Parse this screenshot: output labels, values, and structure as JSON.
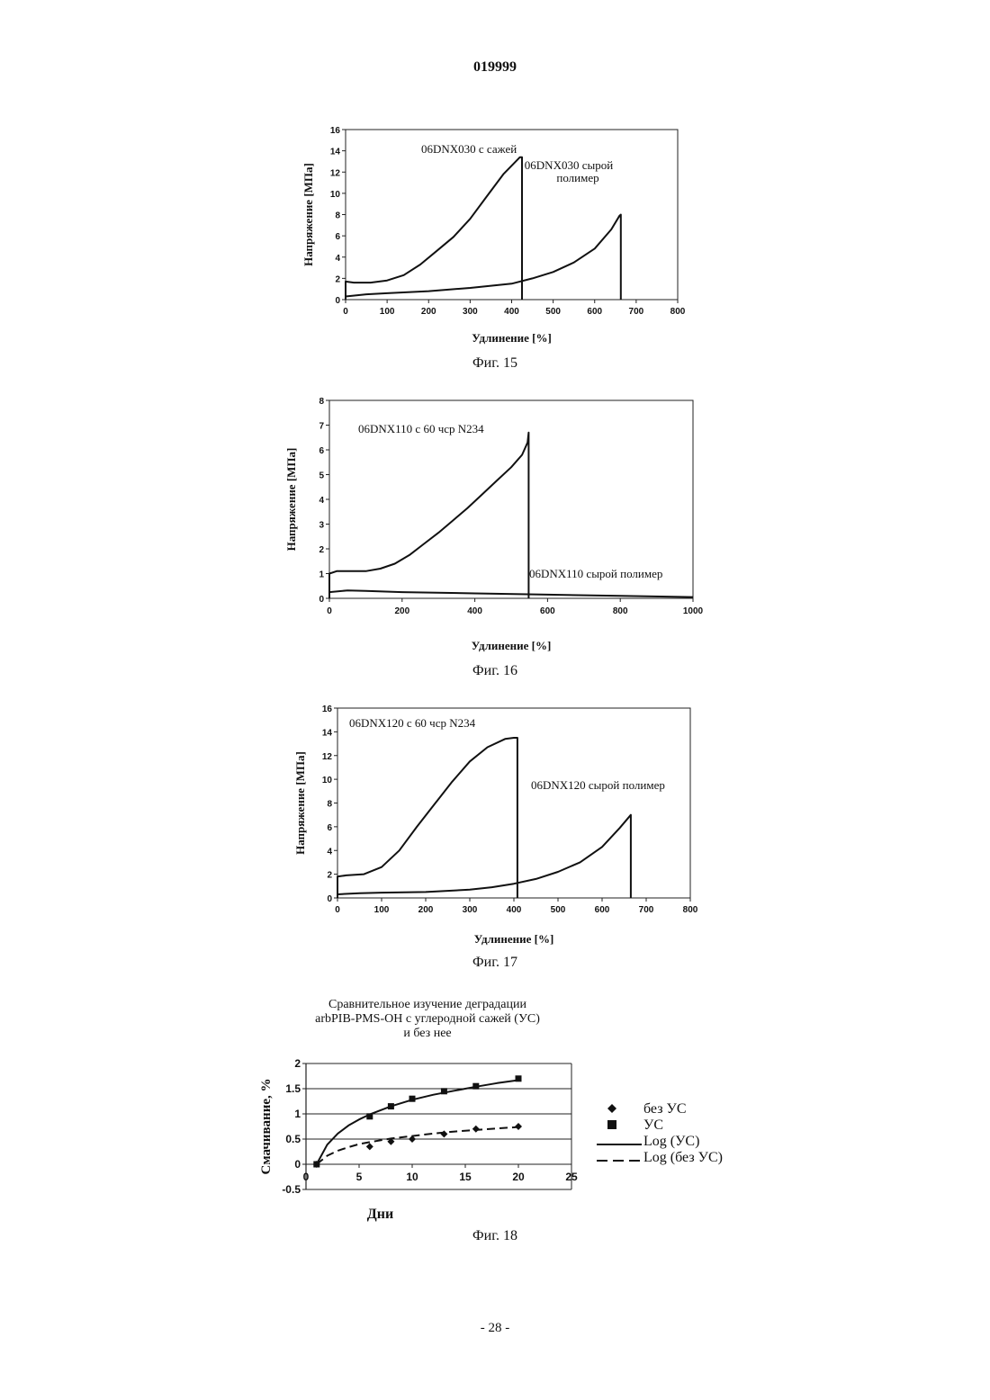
{
  "header": {
    "doc_number": "019999"
  },
  "footer": {
    "page_number": "- 28 -"
  },
  "chart_data": [
    {
      "type": "line",
      "caption": "Фиг. 15",
      "xlabel": "Удлинение [%]",
      "ylabel": "Напряжение [МПа]",
      "xlim": [
        0,
        800
      ],
      "ylim": [
        0,
        16
      ],
      "xticks": [
        "0",
        "100",
        "200",
        "300",
        "400",
        "500",
        "600",
        "700",
        "800"
      ],
      "yticks": [
        "0",
        "2",
        "4",
        "6",
        "8",
        "10",
        "12",
        "14",
        "16"
      ],
      "grid": false,
      "series": [
        {
          "name": "06DNX030 с сажей",
          "x": [
            0,
            0,
            20,
            60,
            100,
            140,
            180,
            220,
            260,
            300,
            340,
            380,
            410,
            420,
            425,
            425
          ],
          "y": [
            0,
            1.7,
            1.6,
            1.6,
            1.8,
            2.3,
            3.3,
            4.6,
            5.9,
            7.6,
            9.7,
            11.8,
            13.0,
            13.4,
            13.4,
            0
          ]
        },
        {
          "name": "06DNX030 сырой полимер",
          "x": [
            0,
            50,
            100,
            200,
            300,
            400,
            450,
            500,
            550,
            600,
            640,
            660,
            663,
            663
          ],
          "y": [
            0.3,
            0.5,
            0.6,
            0.8,
            1.1,
            1.5,
            2.0,
            2.6,
            3.5,
            4.8,
            6.6,
            7.9,
            8.0,
            0
          ]
        }
      ]
    },
    {
      "type": "line",
      "caption": "Фиг. 16",
      "xlabel": "Удлинение [%]",
      "ylabel": "Напряжение [МПа]",
      "xlim": [
        0,
        1000
      ],
      "ylim": [
        0,
        8
      ],
      "xticks": [
        "0",
        "200",
        "400",
        "600",
        "800",
        "1000"
      ],
      "yticks": [
        "0",
        "1",
        "2",
        "3",
        "4",
        "5",
        "6",
        "7",
        "8"
      ],
      "grid": false,
      "series": [
        {
          "name": "06DNX110 с 60 чср N234",
          "x": [
            0,
            0,
            20,
            60,
            100,
            140,
            180,
            220,
            260,
            300,
            340,
            380,
            420,
            460,
            500,
            530,
            545,
            548,
            548
          ],
          "y": [
            0,
            1.0,
            1.1,
            1.1,
            1.1,
            1.2,
            1.4,
            1.75,
            2.2,
            2.65,
            3.15,
            3.65,
            4.2,
            4.75,
            5.3,
            5.8,
            6.3,
            6.7,
            0
          ]
        },
        {
          "name": "06DNX110 сырой полимер",
          "x": [
            0,
            50,
            100,
            200,
            400,
            600,
            800,
            1000
          ],
          "y": [
            0.25,
            0.32,
            0.3,
            0.25,
            0.2,
            0.15,
            0.1,
            0.05
          ]
        }
      ]
    },
    {
      "type": "line",
      "caption": "Фиг. 17",
      "xlabel": "Удлинение [%]",
      "ylabel": "Напряжение [МПа]",
      "xlim": [
        0,
        800
      ],
      "ylim": [
        0,
        16
      ],
      "xticks": [
        "0",
        "100",
        "200",
        "300",
        "400",
        "500",
        "600",
        "700",
        "800"
      ],
      "yticks": [
        "0",
        "2",
        "4",
        "6",
        "8",
        "10",
        "12",
        "14",
        "16"
      ],
      "grid": false,
      "series": [
        {
          "name": "06DNX120 с 60 чср N234",
          "x": [
            0,
            0,
            20,
            60,
            100,
            140,
            180,
            220,
            260,
            300,
            340,
            380,
            400,
            408,
            408
          ],
          "y": [
            0,
            1.8,
            1.9,
            2.0,
            2.6,
            4.0,
            6.0,
            7.9,
            9.8,
            11.5,
            12.7,
            13.4,
            13.5,
            13.5,
            0
          ]
        },
        {
          "name": "06DNX120 сырой полимер",
          "x": [
            0,
            50,
            100,
            200,
            300,
            350,
            400,
            450,
            500,
            550,
            600,
            640,
            665,
            665
          ],
          "y": [
            0.3,
            0.4,
            0.45,
            0.5,
            0.7,
            0.9,
            1.2,
            1.6,
            2.2,
            3.0,
            4.3,
            5.9,
            7.0,
            0
          ]
        }
      ]
    },
    {
      "type": "scatter",
      "caption": "Фиг. 18",
      "title": [
        "Сравнительное изучение деградации",
        "arbPIB-PMS-OH с углеродной сажей (УС)",
        "и без нее"
      ],
      "xlabel": "Дни",
      "ylabel": "Смачивание, %",
      "xlim": [
        0,
        25
      ],
      "ylim": [
        -0.5,
        2
      ],
      "xticks": [
        "0",
        "5",
        "10",
        "15",
        "20",
        "25"
      ],
      "yticks": [
        "-0.5",
        "0",
        "0.5",
        "1",
        "1.5",
        "2"
      ],
      "grid": true,
      "legend_position": "right",
      "series": [
        {
          "name": "без УС",
          "marker": "diamond",
          "x": [
            1,
            6,
            8,
            10,
            13,
            16,
            20
          ],
          "y": [
            0,
            0.35,
            0.45,
            0.5,
            0.6,
            0.7,
            0.75
          ]
        },
        {
          "name": "УС",
          "marker": "square",
          "x": [
            1,
            6,
            8,
            10,
            13,
            16,
            20
          ],
          "y": [
            0,
            0.95,
            1.15,
            1.3,
            1.45,
            1.55,
            1.7
          ]
        },
        {
          "name": "Log (УС)",
          "line": "solid",
          "fit": "log",
          "x": [
            1,
            2,
            3,
            4,
            5,
            6,
            8,
            10,
            12,
            14,
            16,
            18,
            20
          ],
          "y": [
            0,
            0.39,
            0.61,
            0.77,
            0.89,
            0.99,
            1.15,
            1.28,
            1.38,
            1.46,
            1.54,
            1.61,
            1.67
          ]
        },
        {
          "name": "Log (без УС)",
          "line": "dashed",
          "fit": "log",
          "x": [
            1,
            2,
            3,
            4,
            5,
            6,
            8,
            10,
            12,
            14,
            16,
            18,
            20
          ],
          "y": [
            0,
            0.17,
            0.27,
            0.34,
            0.4,
            0.44,
            0.51,
            0.56,
            0.61,
            0.65,
            0.68,
            0.71,
            0.74
          ]
        }
      ]
    }
  ]
}
